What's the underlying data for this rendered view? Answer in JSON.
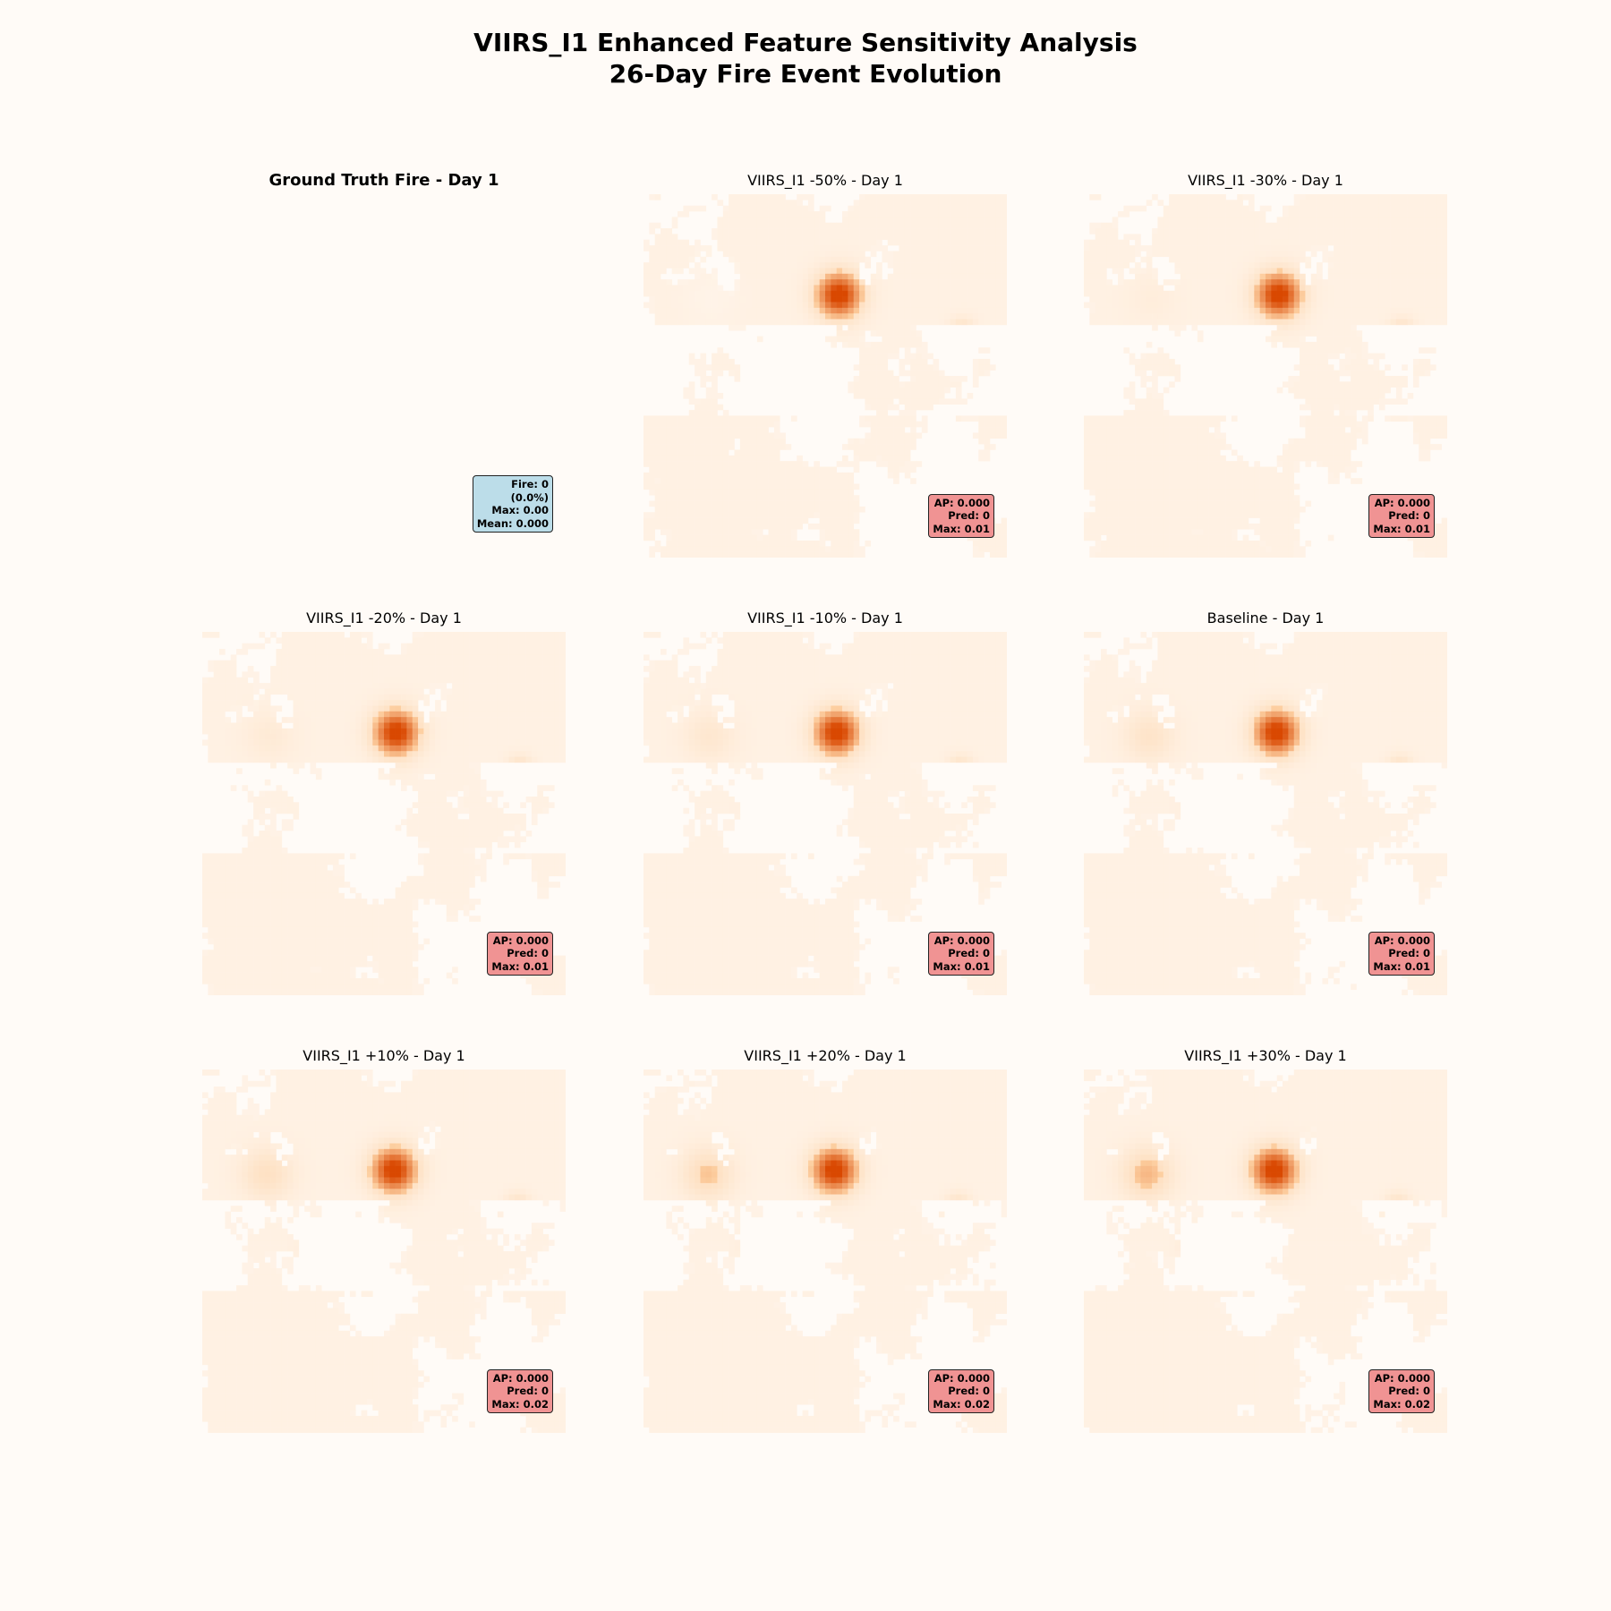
{
  "figure": {
    "title": "VIIRS_I1 Enhanced Feature Sensitivity Analysis\n26-Day Fire Event Evolution"
  },
  "colormap": {
    "low": "#fff5eb",
    "high": "#d94801"
  },
  "ground_truth": {
    "title": "Ground Truth Fire - Day 1",
    "stats": [
      "Fire: 0",
      "(0.0%)",
      "Max: 0.00",
      "Mean: 0.000"
    ]
  },
  "panels": [
    {
      "title": "VIIRS_I1 -50% - Day 1",
      "stats": [
        "AP: 0.000",
        "Pred: 0",
        "Max: 0.01"
      ],
      "max": 0.01,
      "scale": -0.5
    },
    {
      "title": "VIIRS_I1 -30% - Day 1",
      "stats": [
        "AP: 0.000",
        "Pred: 0",
        "Max: 0.01"
      ],
      "max": 0.01,
      "scale": -0.3
    },
    {
      "title": "VIIRS_I1 -20% - Day 1",
      "stats": [
        "AP: 0.000",
        "Pred: 0",
        "Max: 0.01"
      ],
      "max": 0.01,
      "scale": -0.2
    },
    {
      "title": "VIIRS_I1 -10% - Day 1",
      "stats": [
        "AP: 0.000",
        "Pred: 0",
        "Max: 0.01"
      ],
      "max": 0.01,
      "scale": -0.1
    },
    {
      "title": "Baseline - Day 1",
      "stats": [
        "AP: 0.000",
        "Pred: 0",
        "Max: 0.01"
      ],
      "max": 0.01,
      "scale": 0.0
    },
    {
      "title": "VIIRS_I1 +10% - Day 1",
      "stats": [
        "AP: 0.000",
        "Pred: 0",
        "Max: 0.02"
      ],
      "max": 0.02,
      "scale": 0.1
    },
    {
      "title": "VIIRS_I1 +20% - Day 1",
      "stats": [
        "AP: 0.000",
        "Pred: 0",
        "Max: 0.02"
      ],
      "max": 0.02,
      "scale": 0.2
    },
    {
      "title": "VIIRS_I1 +30% - Day 1",
      "stats": [
        "AP: 0.000",
        "Pred: 0",
        "Max: 0.02"
      ],
      "max": 0.02,
      "scale": 0.3
    }
  ],
  "chart_data": {
    "type": "heatmap",
    "grid": "3x3",
    "metrics": [
      {
        "panel": "Ground Truth Fire - Day 1",
        "fire": 0,
        "fire_pct": 0.0,
        "max": 0.0,
        "mean": 0.0
      },
      {
        "panel": "VIIRS_I1 -50% - Day 1",
        "ap": 0.0,
        "pred": 0,
        "max": 0.01
      },
      {
        "panel": "VIIRS_I1 -30% - Day 1",
        "ap": 0.0,
        "pred": 0,
        "max": 0.01
      },
      {
        "panel": "VIIRS_I1 -20% - Day 1",
        "ap": 0.0,
        "pred": 0,
        "max": 0.01
      },
      {
        "panel": "VIIRS_I1 -10% - Day 1",
        "ap": 0.0,
        "pred": 0,
        "max": 0.01
      },
      {
        "panel": "Baseline - Day 1",
        "ap": 0.0,
        "pred": 0,
        "max": 0.01
      },
      {
        "panel": "VIIRS_I1 +10% - Day 1",
        "ap": 0.0,
        "pred": 0,
        "max": 0.02
      },
      {
        "panel": "VIIRS_I1 +20% - Day 1",
        "ap": 0.0,
        "pred": 0,
        "max": 0.02
      },
      {
        "panel": "VIIRS_I1 +30% - Day 1",
        "ap": 0.0,
        "pred": 0,
        "max": 0.02
      }
    ]
  }
}
